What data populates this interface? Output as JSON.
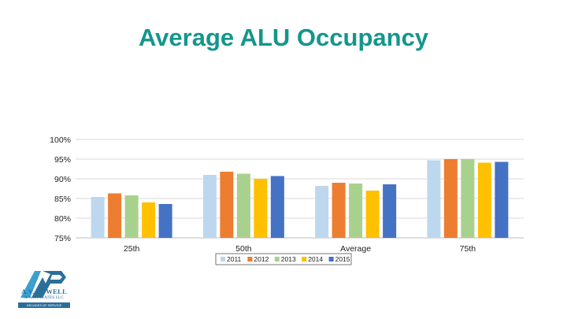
{
  "slide": {
    "title": "Average ALU Occupancy"
  },
  "logo": {
    "name": "A.V. POWELL",
    "subtitle": "& ASSOCIATES LLC",
    "tagline": "DECADES OF SERVICE"
  },
  "chart_data": {
    "type": "bar",
    "title": "",
    "xlabel": "",
    "ylabel": "",
    "categories": [
      "25th",
      "50th",
      "Average",
      "75th"
    ],
    "series": [
      {
        "name": "2011",
        "values": [
          85.4,
          91.0,
          88.2,
          94.7
        ],
        "color": "#bdd7ee"
      },
      {
        "name": "2012",
        "values": [
          86.3,
          91.8,
          89.0,
          95.0
        ],
        "color": "#ed7d31"
      },
      {
        "name": "2013",
        "values": [
          85.8,
          91.3,
          88.8,
          95.0
        ],
        "color": "#a9d18e"
      },
      {
        "name": "2014",
        "values": [
          84.0,
          90.0,
          87.0,
          94.1
        ],
        "color": "#ffc000"
      },
      {
        "name": "2015",
        "values": [
          83.6,
          90.7,
          88.6,
          94.3
        ],
        "color": "#4472c4"
      }
    ],
    "ylim": [
      75,
      100
    ],
    "yticks": [
      75,
      80,
      85,
      90,
      95,
      100
    ],
    "ytick_labels": [
      "75%",
      "80%",
      "85%",
      "90%",
      "95%",
      "100%"
    ],
    "grid": true,
    "legend_position": "bottom"
  }
}
